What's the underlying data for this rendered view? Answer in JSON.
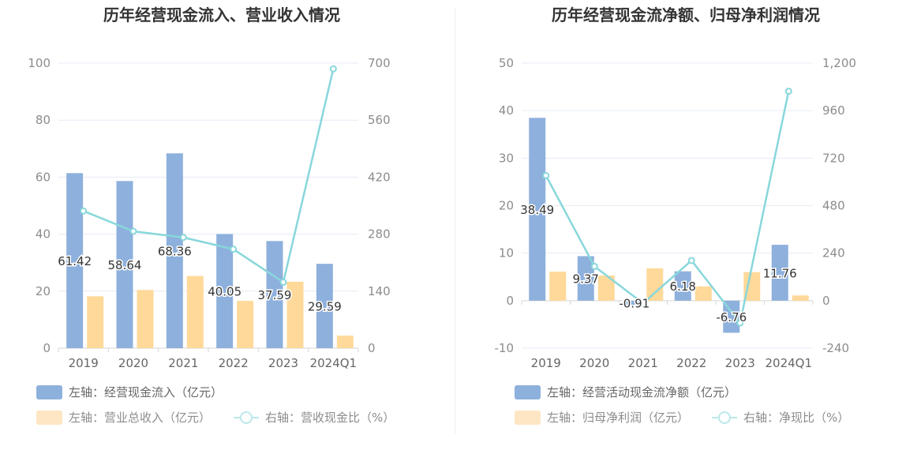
{
  "chart_data": [
    {
      "type": "bar",
      "title": "历年经营现金流入、营业收入情况",
      "categories": [
        "2019",
        "2020",
        "2021",
        "2022",
        "2023",
        "2024Q1"
      ],
      "left_axis": {
        "ticks": [
          "0",
          "20",
          "40",
          "60",
          "80",
          "100"
        ],
        "ylim": [
          0,
          100
        ]
      },
      "right_axis": {
        "ticks": [
          "0",
          "140",
          "280",
          "420",
          "560",
          "700"
        ],
        "ylim": [
          0,
          700
        ]
      },
      "series": [
        {
          "name": "左轴：经营现金流入（亿元）",
          "kind": "bar",
          "axis": "left",
          "color": "#8eb0dd",
          "values": [
            61.42,
            58.64,
            68.36,
            40.05,
            37.59,
            29.59
          ],
          "labels": [
            "61.42",
            "58.64",
            "68.36",
            "40.05",
            "37.59",
            "29.59"
          ]
        },
        {
          "name": "左轴：营业总收入（亿元）",
          "kind": "bar",
          "axis": "left",
          "color": "#ffd999",
          "values": [
            18.2,
            20.4,
            25.3,
            16.6,
            23.3,
            4.4
          ]
        },
        {
          "name": "右轴：营收现金比（%）",
          "kind": "line",
          "axis": "right",
          "color": "#88d7db",
          "values": [
            337,
            287,
            272,
            243,
            162,
            686
          ]
        }
      ]
    },
    {
      "type": "bar",
      "title": "历年经营现金流净额、归母净利润情况",
      "categories": [
        "2019",
        "2020",
        "2021",
        "2022",
        "2023",
        "2024Q1"
      ],
      "left_axis": {
        "ticks": [
          "-10",
          "0",
          "10",
          "20",
          "30",
          "40",
          "50"
        ],
        "ylim": [
          -10,
          50
        ]
      },
      "right_axis": {
        "ticks": [
          "-240",
          "0",
          "240",
          "480",
          "720",
          "960",
          "1,200"
        ],
        "ylim": [
          -240,
          1200
        ]
      },
      "series": [
        {
          "name": "左轴：经营活动现金流净额（亿元）",
          "kind": "bar",
          "axis": "left",
          "color": "#8eb0dd",
          "values": [
            38.49,
            9.37,
            -0.91,
            6.18,
            -6.76,
            11.76
          ],
          "labels": [
            "38.49",
            "9.37",
            "-0.91",
            "6.18",
            "-6.76",
            "11.76"
          ]
        },
        {
          "name": "左轴：归母净利润（亿元）",
          "kind": "bar",
          "axis": "left",
          "color": "#ffd999",
          "values": [
            6.1,
            5.3,
            6.8,
            3.0,
            6.0,
            1.1
          ]
        },
        {
          "name": "右轴：净现比（%）",
          "kind": "line",
          "axis": "right",
          "color": "#88d7db",
          "values": [
            632,
            173,
            -13,
            203,
            -113,
            1058
          ]
        }
      ]
    }
  ]
}
